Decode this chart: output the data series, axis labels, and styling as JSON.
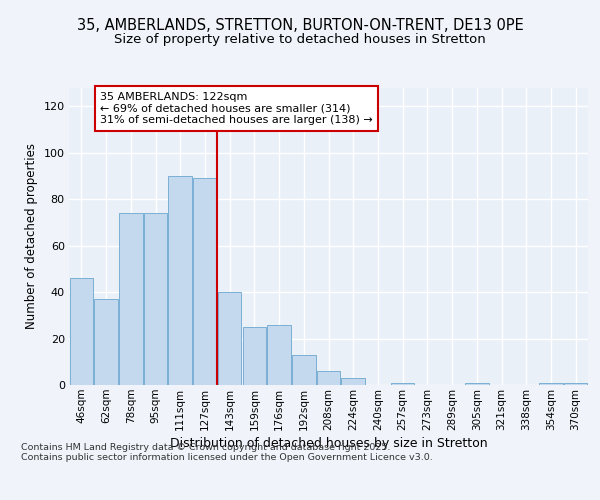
{
  "title1": "35, AMBERLANDS, STRETTON, BURTON-ON-TRENT, DE13 0PE",
  "title2": "Size of property relative to detached houses in Stretton",
  "xlabel": "Distribution of detached houses by size in Stretton",
  "ylabel": "Number of detached properties",
  "categories": [
    "46sqm",
    "62sqm",
    "78sqm",
    "95sqm",
    "111sqm",
    "127sqm",
    "143sqm",
    "159sqm",
    "176sqm",
    "192sqm",
    "208sqm",
    "224sqm",
    "240sqm",
    "257sqm",
    "273sqm",
    "289sqm",
    "305sqm",
    "321sqm",
    "338sqm",
    "354sqm",
    "370sqm"
  ],
  "values": [
    46,
    37,
    74,
    74,
    90,
    89,
    40,
    25,
    26,
    13,
    6,
    3,
    0,
    1,
    0,
    0,
    1,
    0,
    0,
    1,
    1
  ],
  "bar_color": "#c5d9ee",
  "bar_edge_color": "#7aafd4",
  "vline_color": "#cc0000",
  "vline_x": 5.5,
  "annotation_text": "35 AMBERLANDS: 122sqm\n← 69% of detached houses are smaller (314)\n31% of semi-detached houses are larger (138) →",
  "annotation_box_facecolor": "#ffffff",
  "annotation_box_edgecolor": "#cc0000",
  "fig_facecolor": "#f0f4fa",
  "plot_facecolor": "#eaf0f8",
  "footer": "Contains HM Land Registry data © Crown copyright and database right 2025.\nContains public sector information licensed under the Open Government Licence v3.0.",
  "ylim": [
    0,
    128
  ],
  "yticks": [
    0,
    20,
    40,
    60,
    80,
    100,
    120
  ]
}
